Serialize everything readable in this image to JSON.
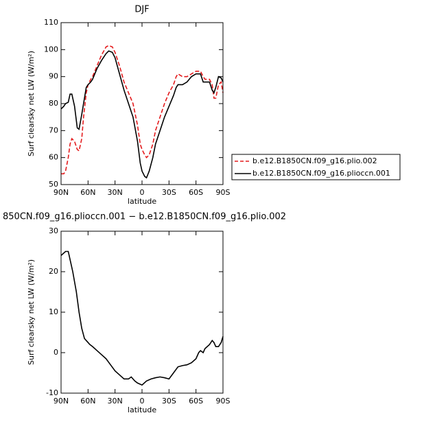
{
  "chart_data": [
    {
      "type": "line",
      "title": "DJF",
      "xlabel": "latitude",
      "ylabel": "Surf clearsky net LW (W/m²)",
      "xlim": [
        90,
        -90
      ],
      "xticks": [
        {
          "value": 90,
          "label": "90N"
        },
        {
          "value": 60,
          "label": "60N"
        },
        {
          "value": 30,
          "label": "30N"
        },
        0,
        {
          "value": -30,
          "label": "30S"
        },
        {
          "value": -60,
          "label": "60S"
        },
        {
          "value": -90,
          "label": "90S"
        }
      ],
      "ylim": [
        50,
        110
      ],
      "yticks": [
        50,
        60,
        70,
        80,
        90,
        100,
        110
      ],
      "x": [
        90,
        87,
        85,
        82,
        80,
        78,
        75,
        72,
        70,
        67,
        65,
        62,
        60,
        57,
        55,
        50,
        45,
        40,
        37,
        33,
        30,
        25,
        20,
        15,
        10,
        5,
        2,
        0,
        -3,
        -5,
        -8,
        -12,
        -15,
        -20,
        -25,
        -30,
        -35,
        -38,
        -40,
        -45,
        -50,
        -55,
        -60,
        -65,
        -68,
        -70,
        -75,
        -78,
        -80,
        -82,
        -85,
        -88,
        -90
      ],
      "series": [
        {
          "name": "b.e12.B1850CN.f09_g16.plio.002",
          "color": "#e41a1c",
          "dash": true,
          "values": [
            54,
            54,
            55,
            60,
            65,
            67,
            66,
            63,
            62.5,
            67,
            75,
            84,
            87,
            89,
            90,
            94,
            98,
            101,
            101.5,
            101,
            99,
            94,
            88,
            84,
            80,
            72,
            65,
            63,
            61,
            60,
            61,
            65,
            70,
            75,
            80,
            84,
            87,
            90,
            91,
            90,
            90,
            91,
            92,
            92,
            90,
            89,
            89,
            87,
            82,
            82,
            87,
            88,
            84
          ]
        },
        {
          "name": "b.e12.B1850CN.f09_g16.plioccn.001",
          "color": "#000000",
          "dash": false,
          "values": [
            78,
            79,
            80,
            80.5,
            83.5,
            83.5,
            79,
            71,
            70.5,
            76,
            80,
            86,
            87,
            88,
            89,
            93,
            96,
            98.5,
            99.5,
            99,
            97,
            91,
            85,
            80,
            75,
            66,
            58,
            55,
            53,
            52.5,
            55,
            60,
            65,
            70,
            75,
            79,
            83,
            86,
            87,
            87,
            88,
            90,
            91,
            91,
            88,
            88,
            88,
            85,
            84,
            86,
            90,
            89.5,
            88
          ]
        }
      ]
    },
    {
      "type": "line",
      "title": "850CN.f09_g16.plioccn.001 − b.e12.B1850CN.f09_g16.plio.002",
      "xlabel": "latitude",
      "ylabel": "Surf clearsky net LW (W/m²)",
      "xlim": [
        90,
        -90
      ],
      "xticks": [
        {
          "value": 90,
          "label": "90N"
        },
        {
          "value": 60,
          "label": "60N"
        },
        {
          "value": 30,
          "label": "30N"
        },
        0,
        {
          "value": -30,
          "label": "30S"
        },
        {
          "value": -60,
          "label": "60S"
        },
        {
          "value": -90,
          "label": "90S"
        }
      ],
      "ylim": [
        -10,
        30
      ],
      "yticks": [
        -10,
        0,
        10,
        20,
        30
      ],
      "x": [
        90,
        85,
        82,
        80,
        77,
        73,
        70,
        67,
        64,
        62,
        58,
        55,
        50,
        45,
        40,
        35,
        30,
        25,
        20,
        15,
        12,
        8,
        5,
        0,
        -5,
        -10,
        -15,
        -20,
        -25,
        -30,
        -35,
        -40,
        -45,
        -50,
        -55,
        -60,
        -63,
        -65,
        -68,
        -70,
        -75,
        -78,
        -80,
        -82,
        -85,
        -88,
        -90
      ],
      "color": "#000000",
      "values": [
        24,
        25,
        25,
        23,
        20,
        15,
        10,
        6,
        3.5,
        3,
        2,
        1.5,
        0.5,
        -0.5,
        -1.5,
        -3,
        -4.5,
        -5.5,
        -6.5,
        -6.5,
        -6,
        -7,
        -7.5,
        -8,
        -7,
        -6.5,
        -6.2,
        -6,
        -6.2,
        -6.5,
        -5,
        -3.5,
        -3.2,
        -3,
        -2.5,
        -1.5,
        0,
        0.5,
        0,
        1,
        2,
        3,
        2.5,
        1.5,
        1.5,
        2.5,
        4
      ]
    }
  ]
}
